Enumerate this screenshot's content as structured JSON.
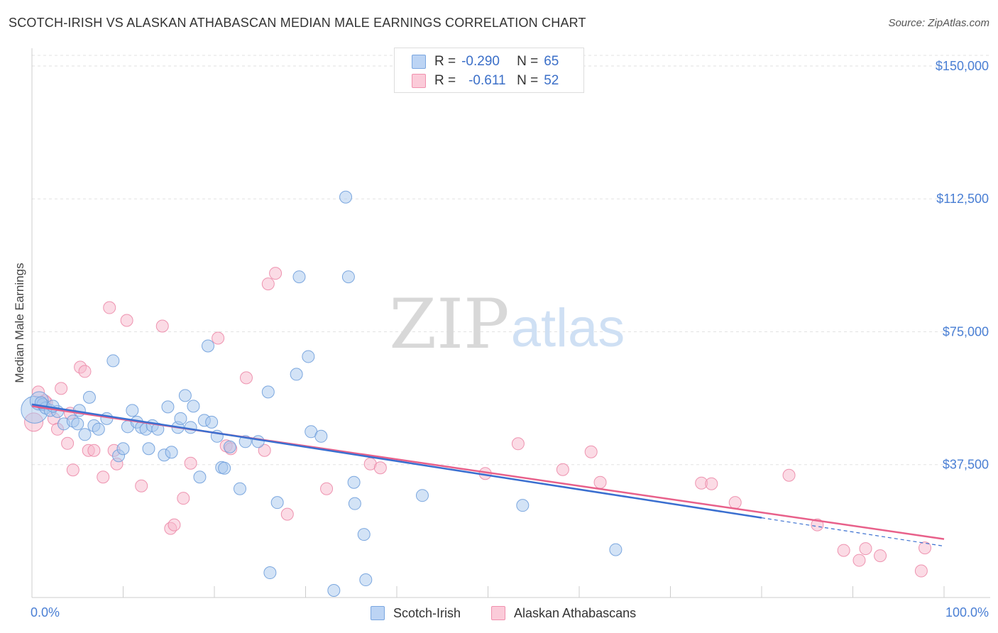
{
  "title": "SCOTCH-IRISH VS ALASKAN ATHABASCAN MEDIAN MALE EARNINGS CORRELATION CHART",
  "source": "Source: ZipAtlas.com",
  "watermark": {
    "zip": "ZIP",
    "atlas": "atlas"
  },
  "legend": {
    "r_label": "R =",
    "n_label": "N =",
    "rows": [
      {
        "r": "-0.290",
        "n": "65",
        "color": "#bcd4f4"
      },
      {
        "r": "-0.611",
        "n": "52",
        "color": "#fbcbd9"
      }
    ]
  },
  "bottom_legend": [
    "Scotch-Irish",
    "Alaskan Athabascans"
  ],
  "colors": {
    "blue_fill": "#a8c8ee",
    "blue_stroke": "#6f9fdc",
    "blue_line": "#3a6fd0",
    "pink_fill": "#f8b8cc",
    "pink_stroke": "#ec8aa8",
    "pink_line": "#e8608a",
    "tick_label": "#4a7fd4"
  },
  "chart_data": {
    "type": "scatter",
    "title": "SCOTCH-IRISH VS ALASKAN ATHABASCAN MEDIAN MALE EARNINGS CORRELATION CHART",
    "xlabel": "",
    "ylabel": "Median Male Earnings",
    "xlim": [
      0,
      100
    ],
    "ylim": [
      0,
      153000
    ],
    "x_tick_labels": [
      "0.0%",
      "100.0%"
    ],
    "y_ticks": [
      37500,
      75000,
      112500,
      150000
    ],
    "y_tick_labels": [
      "$37,500",
      "$75,000",
      "$112,500",
      "$150,000"
    ],
    "grid": "horizontal dashed",
    "legend_position": "top-center",
    "series": [
      {
        "name": "Scotch-Irish",
        "r": -0.29,
        "n": 65,
        "trend": {
          "x0": 0,
          "y0": 54500,
          "x1": 80,
          "y1": 22500,
          "dashed_to_x": 100,
          "dashed_to_y": 14500
        },
        "points": [
          [
            0.3,
            53000,
            3
          ],
          [
            0.8,
            55500,
            2
          ],
          [
            1.2,
            54500,
            1
          ],
          [
            1.5,
            53500,
            1
          ],
          [
            2.0,
            52800,
            1
          ],
          [
            2.8,
            52500,
            1
          ],
          [
            3.5,
            49000,
            1
          ],
          [
            4.5,
            49800,
            1
          ],
          [
            5.2,
            52800,
            1
          ],
          [
            5.8,
            46000,
            1
          ],
          [
            6.3,
            56500,
            1
          ],
          [
            6.8,
            48500,
            1
          ],
          [
            7.3,
            47500,
            1
          ],
          [
            8.2,
            50500,
            1
          ],
          [
            8.9,
            66800,
            1
          ],
          [
            9.5,
            40000,
            1
          ],
          [
            10.0,
            42000,
            1
          ],
          [
            10.5,
            48200,
            1
          ],
          [
            11.0,
            52800,
            1
          ],
          [
            11.5,
            49500,
            1
          ],
          [
            12.0,
            48000,
            1
          ],
          [
            12.5,
            47500,
            1
          ],
          [
            12.8,
            42000,
            1
          ],
          [
            13.2,
            48500,
            1
          ],
          [
            13.8,
            47500,
            1
          ],
          [
            14.5,
            40200,
            1
          ],
          [
            14.9,
            53800,
            1
          ],
          [
            15.3,
            41000,
            1
          ],
          [
            16.0,
            48000,
            1
          ],
          [
            16.3,
            50500,
            1
          ],
          [
            16.8,
            57000,
            1
          ],
          [
            17.4,
            48000,
            1
          ],
          [
            17.7,
            54000,
            1
          ],
          [
            18.4,
            34000,
            1
          ],
          [
            18.9,
            50000,
            1
          ],
          [
            19.3,
            71000,
            1
          ],
          [
            19.7,
            49500,
            1
          ],
          [
            20.3,
            45500,
            1
          ],
          [
            20.8,
            36700,
            1
          ],
          [
            21.1,
            36500,
            1
          ],
          [
            21.7,
            42500,
            1
          ],
          [
            22.8,
            30700,
            1
          ],
          [
            23.4,
            44000,
            1
          ],
          [
            24.8,
            44000,
            1
          ],
          [
            25.9,
            58000,
            1
          ],
          [
            26.1,
            7000,
            1
          ],
          [
            26.9,
            26800,
            1
          ],
          [
            29.0,
            63000,
            1
          ],
          [
            29.3,
            90500,
            1
          ],
          [
            30.3,
            68000,
            1
          ],
          [
            30.6,
            46800,
            1
          ],
          [
            31.7,
            45500,
            1
          ],
          [
            33.1,
            2000,
            1
          ],
          [
            34.4,
            113000,
            1
          ],
          [
            34.7,
            90500,
            1
          ],
          [
            35.3,
            32500,
            1
          ],
          [
            35.4,
            26500,
            1
          ],
          [
            36.4,
            17800,
            1
          ],
          [
            36.6,
            5000,
            1
          ],
          [
            42.8,
            28800,
            1
          ],
          [
            53.8,
            26000,
            1
          ],
          [
            64.0,
            13500,
            1
          ],
          [
            1.0,
            55000,
            1
          ],
          [
            2.3,
            54000,
            1
          ],
          [
            5.0,
            49000,
            1
          ]
        ]
      },
      {
        "name": "Alaskan Athabascans",
        "r": -0.611,
        "n": 52,
        "trend": {
          "x0": 0,
          "y0": 54000,
          "x1": 100,
          "y1": 16500
        },
        "points": [
          [
            0.2,
            49500,
            2
          ],
          [
            0.7,
            58000,
            1
          ],
          [
            1.6,
            55000,
            1
          ],
          [
            2.4,
            50500,
            1
          ],
          [
            2.8,
            47500,
            1
          ],
          [
            3.2,
            59000,
            1
          ],
          [
            3.9,
            43500,
            1
          ],
          [
            4.5,
            36000,
            1
          ],
          [
            5.3,
            65000,
            1
          ],
          [
            5.8,
            63800,
            1
          ],
          [
            6.2,
            41500,
            1
          ],
          [
            6.8,
            41500,
            1
          ],
          [
            7.8,
            34000,
            1
          ],
          [
            8.5,
            81800,
            1
          ],
          [
            9.0,
            41500,
            1
          ],
          [
            9.3,
            37700,
            1
          ],
          [
            10.4,
            78200,
            1
          ],
          [
            12.0,
            31500,
            1
          ],
          [
            14.3,
            76600,
            1
          ],
          [
            15.2,
            19500,
            1
          ],
          [
            15.6,
            20500,
            1
          ],
          [
            16.6,
            28000,
            1
          ],
          [
            17.4,
            37900,
            1
          ],
          [
            20.4,
            73200,
            1
          ],
          [
            21.3,
            42800,
            1
          ],
          [
            21.8,
            42000,
            1
          ],
          [
            23.5,
            62000,
            1
          ],
          [
            25.5,
            41500,
            1
          ],
          [
            25.9,
            88500,
            1
          ],
          [
            26.7,
            91500,
            1
          ],
          [
            28.0,
            23500,
            1
          ],
          [
            32.3,
            30700,
            1
          ],
          [
            37.1,
            37700,
            1
          ],
          [
            38.2,
            36600,
            1
          ],
          [
            49.7,
            35000,
            1
          ],
          [
            53.3,
            43400,
            1
          ],
          [
            58.2,
            36100,
            1
          ],
          [
            61.3,
            41100,
            1
          ],
          [
            62.3,
            32500,
            1
          ],
          [
            73.4,
            32300,
            1
          ],
          [
            74.5,
            32100,
            1
          ],
          [
            77.1,
            26800,
            1
          ],
          [
            83.0,
            34500,
            1
          ],
          [
            86.1,
            20500,
            1
          ],
          [
            89.0,
            13300,
            1
          ],
          [
            90.7,
            10500,
            1
          ],
          [
            91.4,
            13800,
            1
          ],
          [
            93.0,
            11800,
            1
          ],
          [
            97.5,
            7500,
            1
          ],
          [
            97.9,
            14000,
            1
          ],
          [
            1.4,
            55500,
            1
          ],
          [
            4.2,
            52000,
            1
          ]
        ]
      }
    ]
  }
}
